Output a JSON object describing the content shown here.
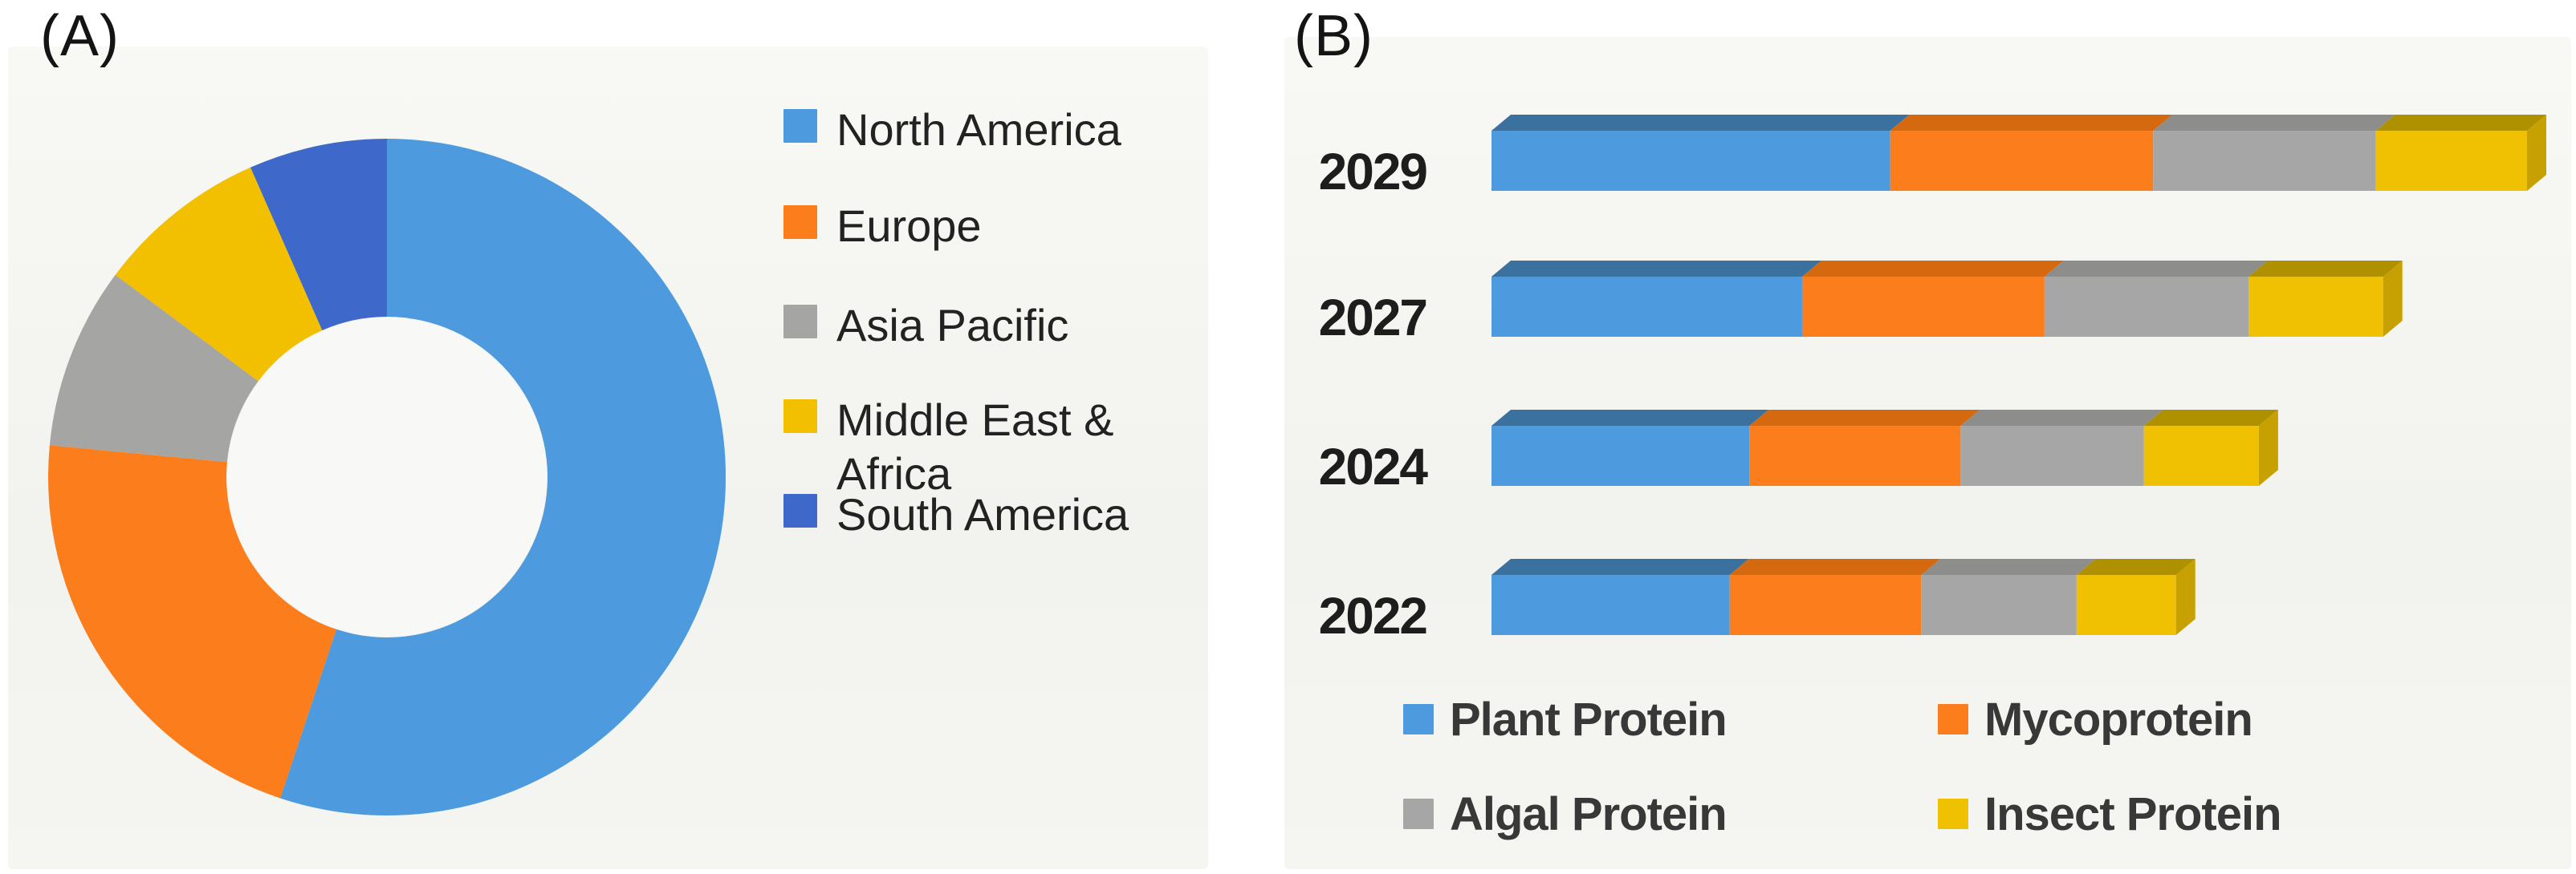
{
  "figure": {
    "panel_a_label": "(A)",
    "panel_b_label": "(B)",
    "background_color": "#ffffff",
    "plot_wash_color": "#f4f4f0"
  },
  "chart_data": [
    {
      "type": "pie",
      "subtype": "donut",
      "panel_label": "(A)",
      "labels": [
        "North America",
        "Europe",
        "Asia Pacific",
        "Middle East & Africa",
        "South America"
      ],
      "values_pct": [
        55.1,
        21.4,
        8.7,
        8.2,
        6.6
      ],
      "colors": [
        "#4D9BDE",
        "#FB7D1C",
        "#A5A5A3",
        "#F3C001",
        "#3E68C9"
      ],
      "start_angle_deg": 0,
      "direction": "clockwise",
      "inner_radius_ratio": 0.474,
      "hole_color": "#f8f8f6",
      "legend_position": "right",
      "note": "no data labels shown; slice percentages estimated from arc angles"
    },
    {
      "type": "bar",
      "subtype": "horizontal-stacked-3d",
      "panel_label": "(B)",
      "categories": [
        "2029",
        "2027",
        "2024",
        "2022"
      ],
      "series": [
        {
          "name": "Plant Protein",
          "color": "#4D9BDE",
          "top_color": "#3A719F",
          "side_color": "#33658F",
          "values": [
            38.5,
            30.0,
            24.9,
            23.0
          ]
        },
        {
          "name": "Mycoprotein",
          "color": "#FB7D1C",
          "top_color": "#D4690F",
          "side_color": "#C05F0C",
          "values": [
            25.4,
            23.4,
            20.4,
            18.5
          ]
        },
        {
          "name": "Algal Protein",
          "color": "#A6A6A6",
          "top_color": "#8D8D8B",
          "side_color": "#838381",
          "values": [
            21.5,
            19.7,
            17.7,
            15.0
          ]
        },
        {
          "name": "Insect Protein",
          "color": "#F0C002",
          "top_color": "#AF9100",
          "side_color": "#C7A002",
          "values": [
            14.6,
            13.0,
            11.1,
            9.6
          ]
        }
      ],
      "x_max": 100,
      "grid": false,
      "axis_ticks_visible": false,
      "legend_position": "bottom",
      "note": "no value axis shown; values are relative segment lengths estimated with 2029 bar total = 100"
    }
  ]
}
